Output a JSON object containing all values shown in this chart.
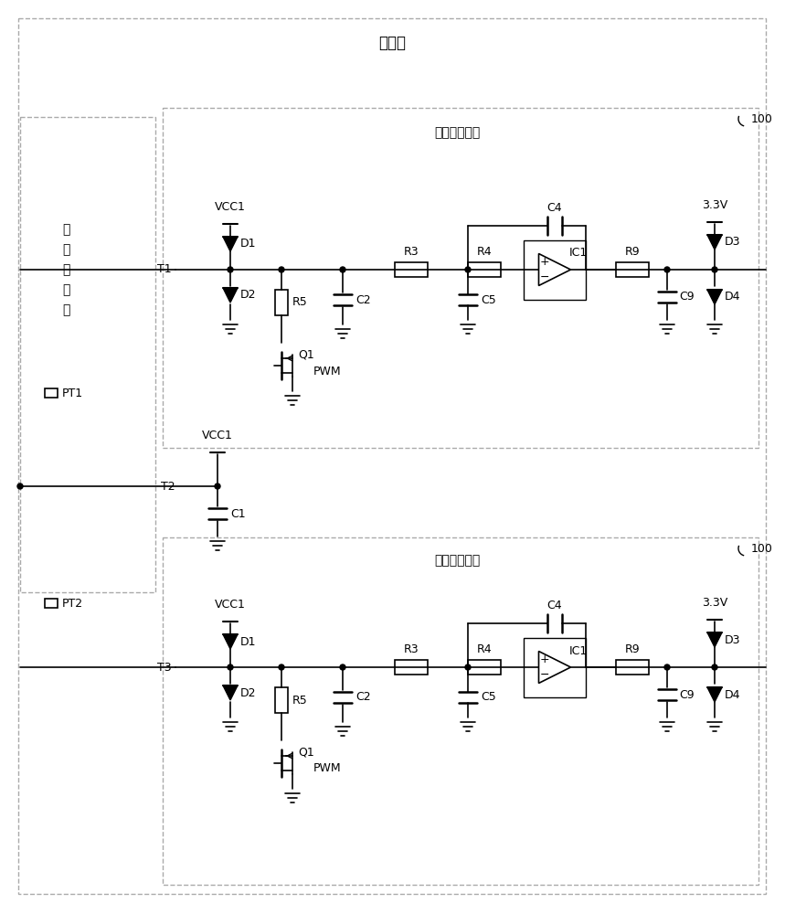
{
  "title_gun": "充电枪",
  "title_circuit": "电阻测量电路",
  "label_inside": "充\n电\n枪\n内\n部",
  "label_100": "100",
  "bg_color": "#ffffff",
  "line_color": "#000000",
  "dash_color": "#aaaaaa",
  "font_size": 9,
  "title_font_size": 11
}
